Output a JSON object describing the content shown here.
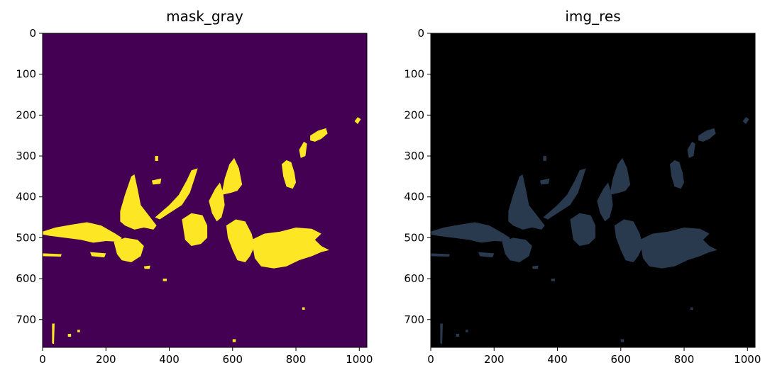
{
  "chart_data": [
    {
      "type": "image",
      "title": "mask_gray",
      "colormap": "viridis",
      "background_color": "#440154",
      "foreground_color": "#fde725",
      "xlim": [
        0,
        1024
      ],
      "ylim": [
        768,
        0
      ],
      "xticks": [
        0,
        200,
        400,
        600,
        800,
        1000
      ],
      "yticks": [
        0,
        100,
        200,
        300,
        400,
        500,
        600,
        700
      ],
      "grid": false
    },
    {
      "type": "image",
      "title": "img_res",
      "background_color": "#000000",
      "foreground_color": "#2a3a4e",
      "xlim": [
        0,
        1024
      ],
      "ylim": [
        768,
        0
      ],
      "xticks": [
        0,
        200,
        400,
        600,
        800,
        1000
      ],
      "yticks": [
        0,
        100,
        200,
        300,
        400,
        500,
        600,
        700
      ],
      "grid": false
    }
  ]
}
